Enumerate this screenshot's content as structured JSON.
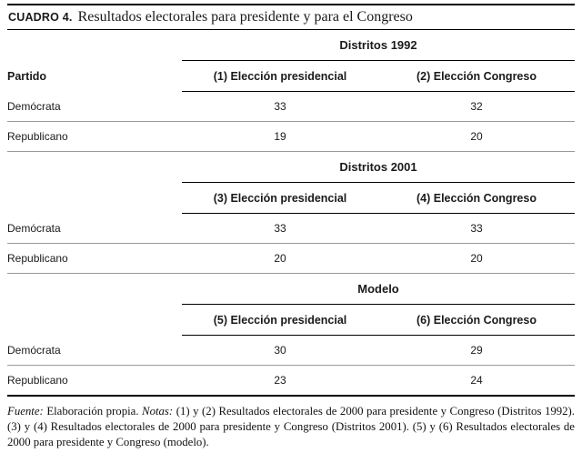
{
  "title": {
    "label": "CUADRO 4.",
    "text": "Resultados electorales para presidente y para el Congreso"
  },
  "table": {
    "party_header": "Partido",
    "panels": [
      {
        "group": "Distritos 1992",
        "col1": "(1) Elección presidencial",
        "col2": "(2) Elección Congreso",
        "rows": [
          {
            "party": "Demócrata",
            "v1": "33",
            "v2": "32"
          },
          {
            "party": "Republicano",
            "v1": "19",
            "v2": "20"
          }
        ]
      },
      {
        "group": "Distritos 2001",
        "col1": "(3) Elección presidencial",
        "col2": "(4) Elección Congreso",
        "rows": [
          {
            "party": "Demócrata",
            "v1": "33",
            "v2": "33"
          },
          {
            "party": "Republicano",
            "v1": "20",
            "v2": "20"
          }
        ]
      },
      {
        "group": "Modelo",
        "col1": "(5) Elección presidencial",
        "col2": "(6) Elección Congreso",
        "rows": [
          {
            "party": "Demócrata",
            "v1": "30",
            "v2": "29"
          },
          {
            "party": "Republicano",
            "v1": "23",
            "v2": "24"
          }
        ]
      }
    ]
  },
  "footnote": {
    "fuente_label": "Fuente:",
    "fuente_text": "Elaboración propia.",
    "notas_label": "Notas:",
    "notas_text": "(1) y (2) Resultados electorales de 2000 para presidente y Congreso (Distritos 1992). (3) y (4) Resultados electorales de 2000 para presidente y Congreso (Distritos 2001). (5) y (6) Resultados electorales de 2000 para presidente y Congreso (modelo)."
  }
}
